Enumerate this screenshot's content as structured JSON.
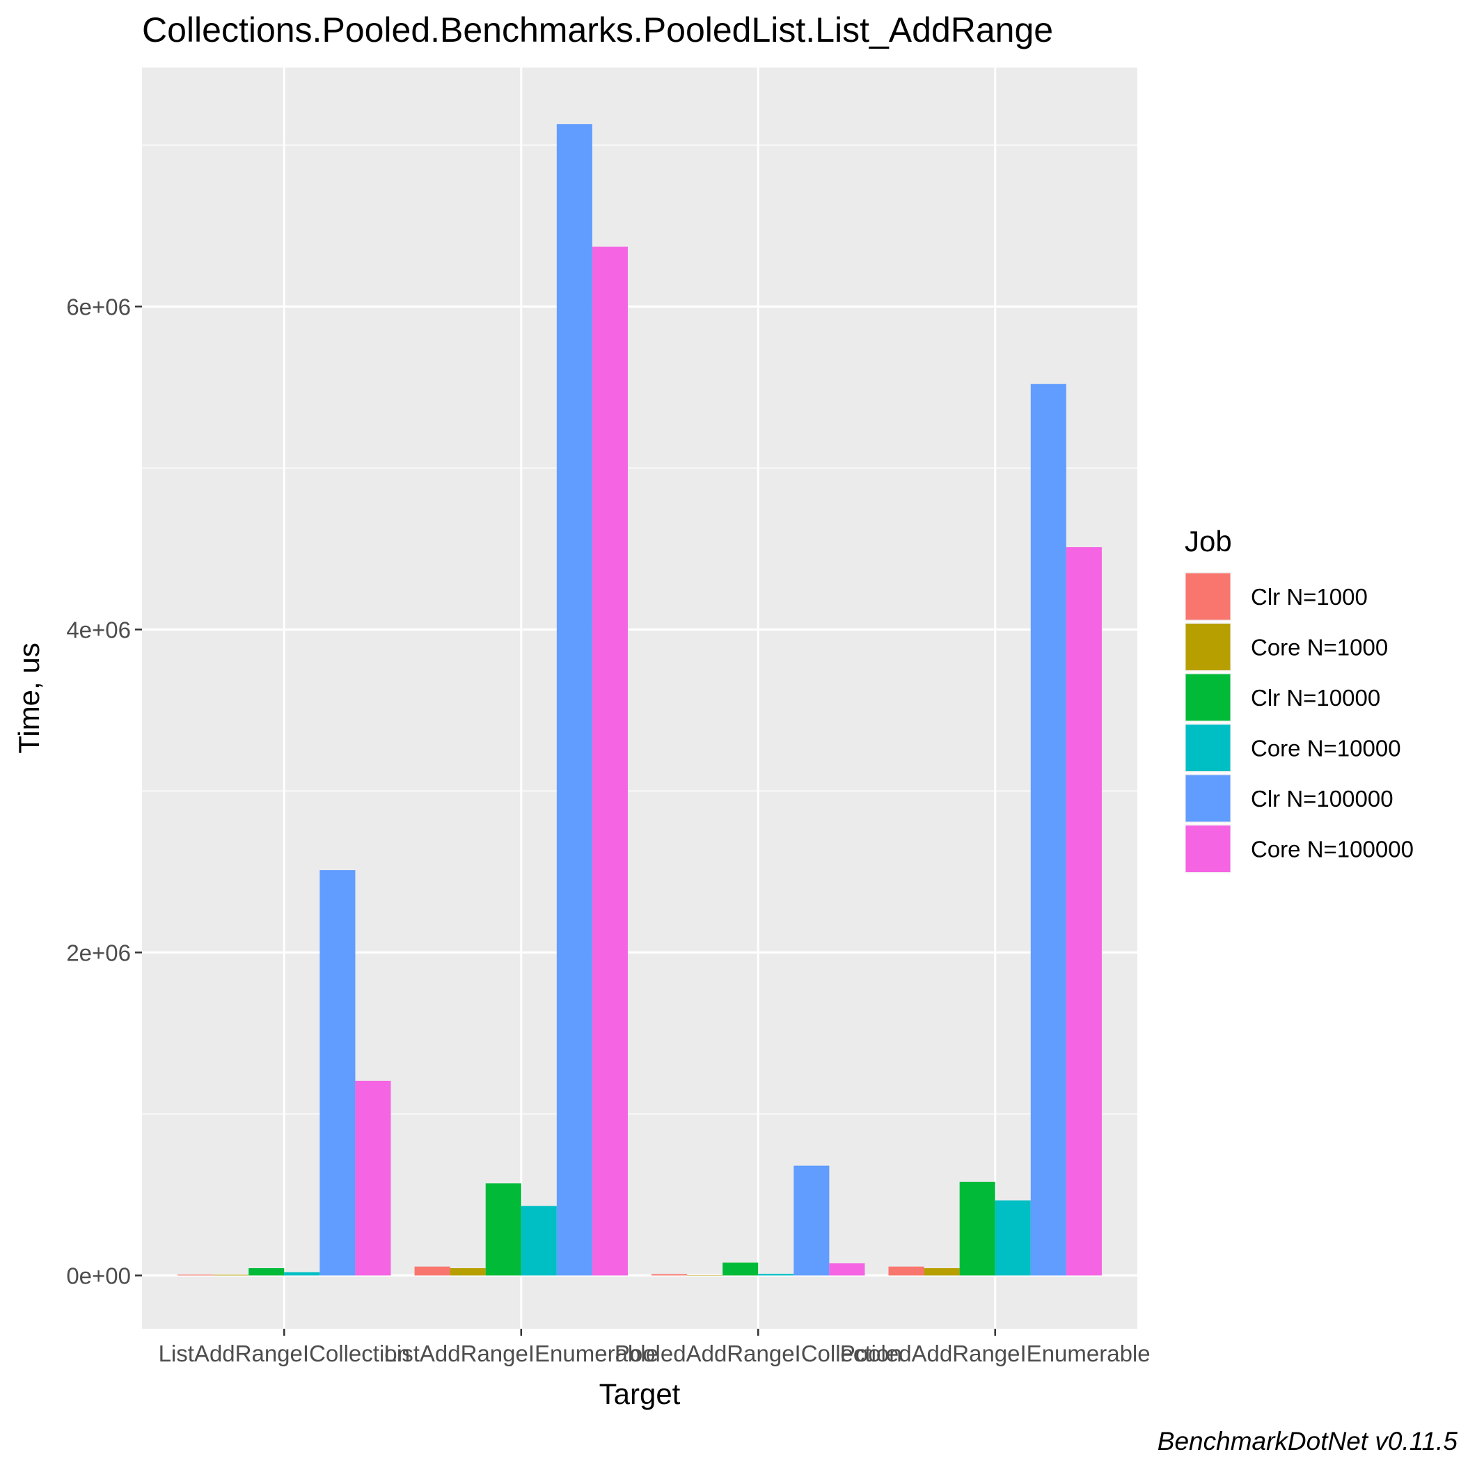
{
  "chart_data": {
    "type": "bar",
    "title": "Collections.Pooled.Benchmarks.PooledList.List_AddRange",
    "xlabel": "Target",
    "ylabel": "Time, us",
    "caption": "BenchmarkDotNet v0.11.5",
    "categories": [
      "ListAddRangeICollection",
      "ListAddRangeIEnumerable",
      "PooledAddRangeICollection",
      "PooledAddRangeIEnumerable"
    ],
    "ylim": [
      -330000,
      7480000
    ],
    "yticks": [
      0,
      2000000,
      4000000,
      6000000
    ],
    "ytick_labels": [
      "0e+00",
      "2e+06",
      "4e+06",
      "6e+06"
    ],
    "grid": true,
    "legend": {
      "title": "Job",
      "position": "right"
    },
    "series": [
      {
        "name": "Clr N=1000",
        "color": "#F8766D",
        "values": [
          5000,
          55000,
          8000,
          55000
        ]
      },
      {
        "name": "Core N=1000",
        "color": "#B79F00",
        "values": [
          4000,
          45000,
          2000,
          45000
        ]
      },
      {
        "name": "Clr N=10000",
        "color": "#00BA38",
        "values": [
          45000,
          570000,
          80000,
          580000
        ]
      },
      {
        "name": "Core N=10000",
        "color": "#00BFC4",
        "values": [
          20000,
          430000,
          10000,
          465000
        ]
      },
      {
        "name": "Clr N=100000",
        "color": "#619CFF",
        "values": [
          2510000,
          7130000,
          680000,
          5520000
        ]
      },
      {
        "name": "Core N=100000",
        "color": "#F564E3",
        "values": [
          1205000,
          6370000,
          75000,
          4510000
        ]
      }
    ]
  }
}
